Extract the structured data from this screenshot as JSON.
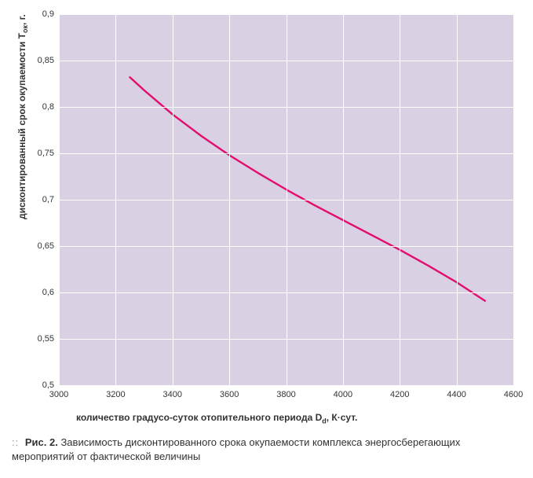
{
  "chart": {
    "type": "line",
    "background_color": "#d9d0e3",
    "grid_color": "#ffffff",
    "line_color": "#e20d6e",
    "line_width": 2.4,
    "tick_font_size": 11,
    "label_font_size": 12,
    "label_font_weight": "bold",
    "xlim": [
      3000,
      4600
    ],
    "ylim": [
      0.5,
      0.9
    ],
    "xtick_step": 200,
    "ytick_step": 0.05,
    "xticks": [
      3000,
      3200,
      3400,
      3600,
      3800,
      4000,
      4200,
      4400,
      4600
    ],
    "yticks": [
      0.5,
      0.55,
      0.6,
      0.65,
      0.7,
      0.75,
      0.8,
      0.85,
      0.9
    ],
    "xtick_labels": [
      "3000",
      "3200",
      "3400",
      "3600",
      "3800",
      "4000",
      "4200",
      "4400",
      "4600"
    ],
    "ytick_labels": [
      "0,5",
      "0,55",
      "0,6",
      "0,65",
      "0,7",
      "0,75",
      "0,8",
      "0,85",
      "0,9"
    ],
    "xlabel_html": "количество градусо-суток отопительного периода D<sub>d</sub>, К·сут.",
    "ylabel_html": "дисконтированный срок окупаемости T<sub>ок</sub>, г.",
    "series": {
      "x": [
        3250,
        3300,
        3400,
        3500,
        3600,
        3700,
        3800,
        3900,
        4000,
        4100,
        4200,
        4300,
        4400,
        4500
      ],
      "y": [
        0.832,
        0.818,
        0.792,
        0.769,
        0.748,
        0.729,
        0.711,
        0.694,
        0.678,
        0.662,
        0.646,
        0.629,
        0.611,
        0.591
      ]
    }
  },
  "caption": {
    "marker": "::",
    "lead": "Рис. 2.",
    "text": "Зависимость дисконтированного срока окупаемости комплекса энергосберегающих мероприятий от фактической величины"
  }
}
